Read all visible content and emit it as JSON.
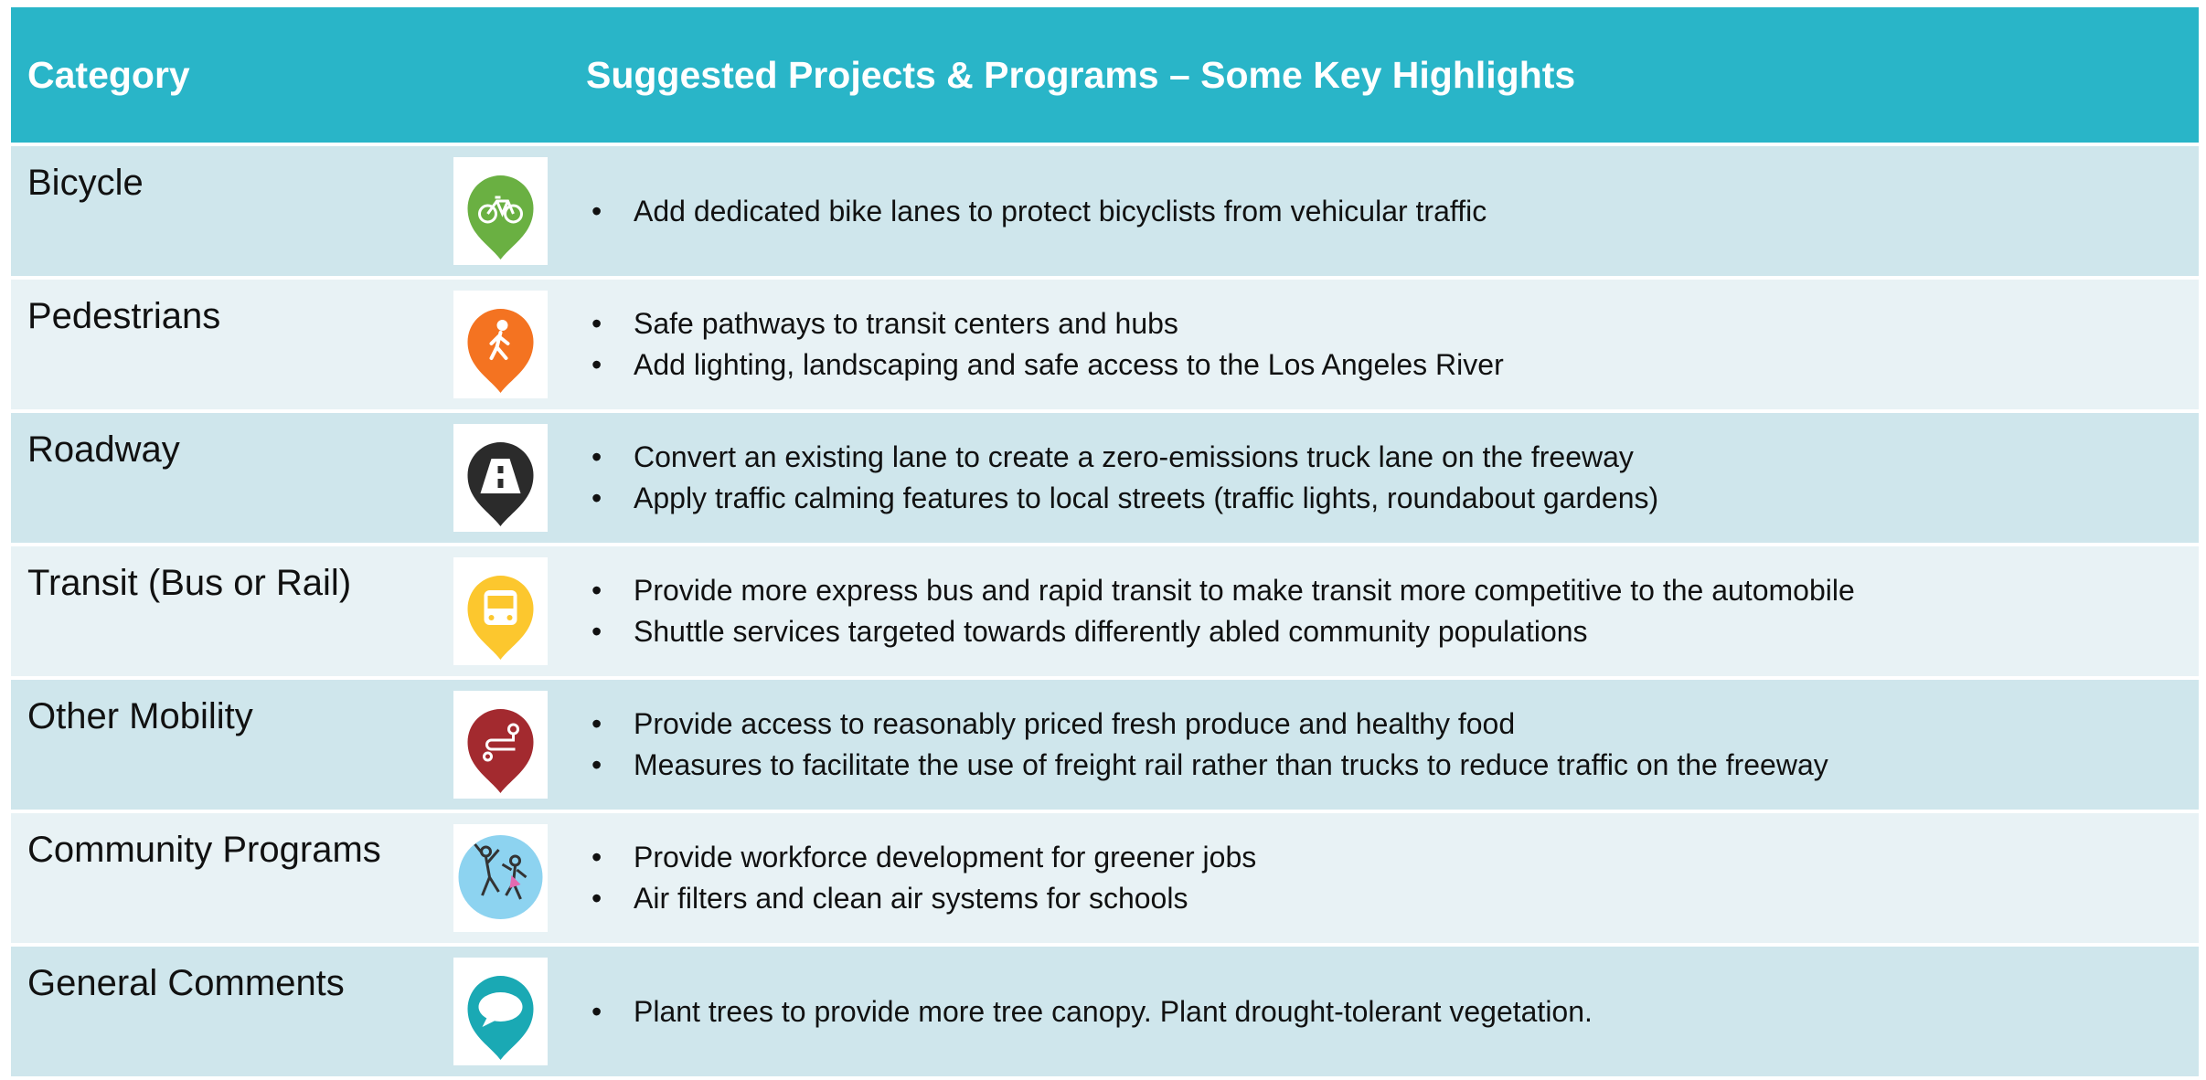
{
  "table": {
    "header": [
      "Category",
      "Suggested Projects & Programs – Some Key Highlights"
    ],
    "rows": [
      {
        "category": "Bicycle",
        "bullets": [
          "Add dedicated bike lanes to protect bicyclists from vehicular traffic"
        ]
      },
      {
        "category": "Pedestrians",
        "bullets": [
          "Safe pathways to transit centers and hubs",
          "Add lighting, landscaping and safe access to the Los Angeles River"
        ]
      },
      {
        "category": "Roadway",
        "bullets": [
          "Convert an existing lane to create a zero-emissions truck lane on the freeway",
          "Apply traffic calming features to local streets (traffic lights, roundabout gardens)"
        ]
      },
      {
        "category": "Transit (Bus or Rail)",
        "bullets": [
          "Provide more express bus and rapid transit to make transit more competitive to the automobile",
          "Shuttle services targeted towards differently abled community populations"
        ]
      },
      {
        "category": "Other Mobility",
        "bullets": [
          "Provide access to reasonably priced fresh produce and healthy food",
          "Measures to facilitate the use of freight rail rather than trucks to reduce traffic on the freeway"
        ]
      },
      {
        "category": "Community Programs",
        "bullets": [
          "Provide workforce development for greener jobs",
          "Air filters and clean air systems for schools"
        ]
      },
      {
        "category": "General Comments",
        "bullets": [
          "Plant trees to provide more tree canopy.  Plant drought-tolerant vegetation."
        ]
      }
    ]
  }
}
